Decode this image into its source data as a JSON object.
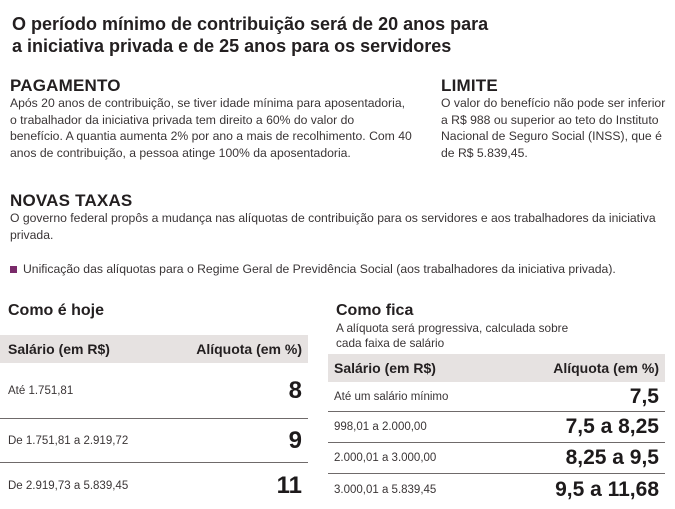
{
  "headline": {
    "line1": "O período mínimo de contribuição será de 20 anos para",
    "line2": "a iniciativa privada e de 25 anos para os servidores"
  },
  "pagamento": {
    "title": "PAGAMENTO",
    "lines": [
      "Após 20 anos de contribuição, se tiver idade mínima para aposentadoria,",
      "o trabalhador da iniciativa privada tem direito a 60% do valor do",
      "benefício. A quantia aumenta 2% por ano a mais de recolhimento. Com 40",
      "anos de contribuição, a pessoa atinge 100% da aposentadoria."
    ]
  },
  "limite": {
    "title": "LIMITE",
    "lines": [
      "O valor do benefício não pode ser inferior",
      "a R$ 988 ou superior ao teto do Instituto",
      "Nacional de Seguro Social (INSS), que é",
      "de R$ 5.839,45."
    ]
  },
  "novas_taxas": {
    "title": "NOVAS TAXAS",
    "lines": [
      "O governo federal propôs a mudança nas alíquotas de contribuição para os servidores e aos trabalhadores da iniciativa",
      "privada."
    ],
    "bullet": "Unificação das alíquotas para o Regime Geral de Previdência Social (aos trabalhadores da iniciativa privada).",
    "bullet_color": "#7a2a6a"
  },
  "como_e_hoje": {
    "title": "Como é hoje",
    "col_salario": "Salário (em R$)",
    "col_aliquota": "Alíquota (em %)",
    "rows": [
      {
        "salario": "Até 1.751,81",
        "aliquota": "8"
      },
      {
        "salario": "De 1.751,81 a 2.919,72",
        "aliquota": "9"
      },
      {
        "salario": "De 2.919,73 a 5.839,45",
        "aliquota": "11"
      }
    ]
  },
  "como_fica": {
    "title": "Como fica",
    "subtitle_line1": "A alíquota será progressiva, calculada sobre",
    "subtitle_line2": "cada faixa de salário",
    "col_salario": "Salário (em R$)",
    "col_aliquota": "Alíquota (em %)",
    "rows": [
      {
        "salario": "Até um salário mínimo",
        "aliquota": "7,5"
      },
      {
        "salario": "998,01 a 2.000,00",
        "aliquota": "7,5 a 8,25"
      },
      {
        "salario": "2.000,01 a 3.000,00",
        "aliquota": "8,25 a 9,5"
      },
      {
        "salario": "3.000,01 a 5.839,45",
        "aliquota": "9,5 a 11,68"
      }
    ]
  }
}
